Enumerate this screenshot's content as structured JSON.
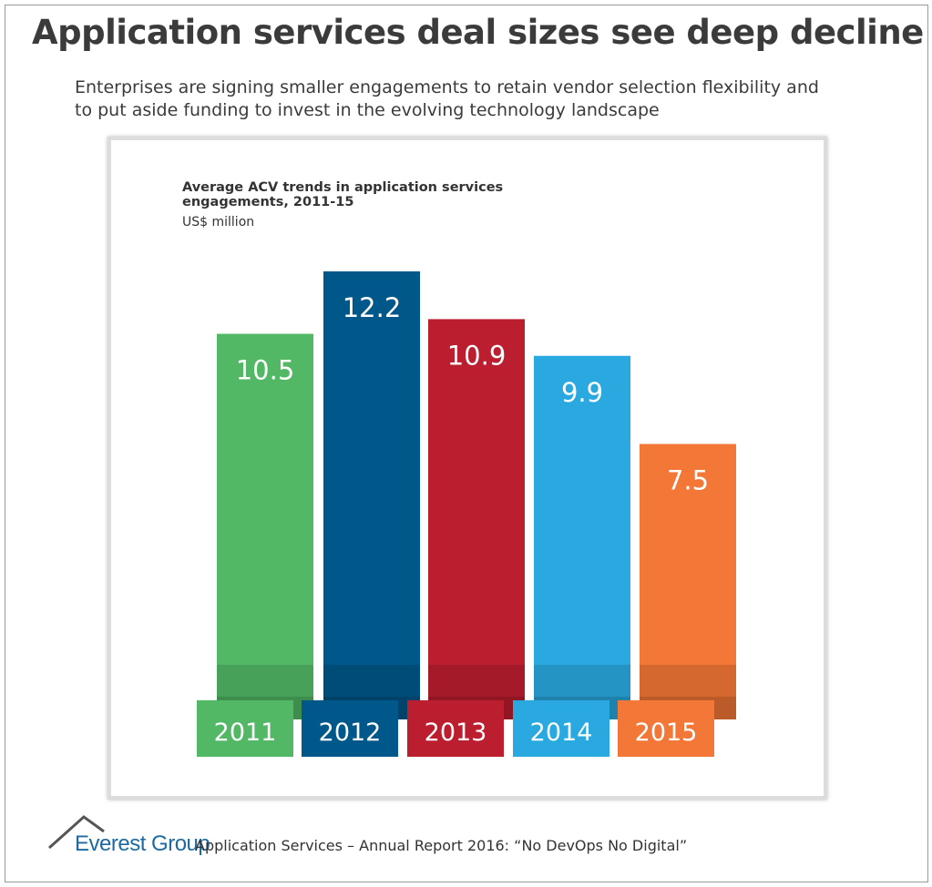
{
  "header": {
    "title": "Application services deal sizes see deep decline",
    "subtitle": "Enterprises are signing  smaller engagements to retain vendor selection flexibility and to put aside funding to invest in the evolving technology landscape"
  },
  "chart_data": {
    "type": "bar",
    "title": "Average ACV trends in application services engagements, 2011-15",
    "ylabel": "US$ million",
    "categories": [
      "2011",
      "2012",
      "2013",
      "2014",
      "2015"
    ],
    "values": [
      10.5,
      12.2,
      10.9,
      9.9,
      7.5
    ],
    "value_labels": [
      "10.5",
      "12.2",
      "10.9",
      "9.9",
      "7.5"
    ],
    "colors": [
      "#52b866",
      "#00578a",
      "#bb1e2f",
      "#29a9e0",
      "#f37736"
    ],
    "ylim": [
      0,
      12.2
    ],
    "grid": false
  },
  "footer": {
    "brand": "Everest Group",
    "report": "Application Services – Annual Report 2016: “No DevOps No Digital”"
  }
}
